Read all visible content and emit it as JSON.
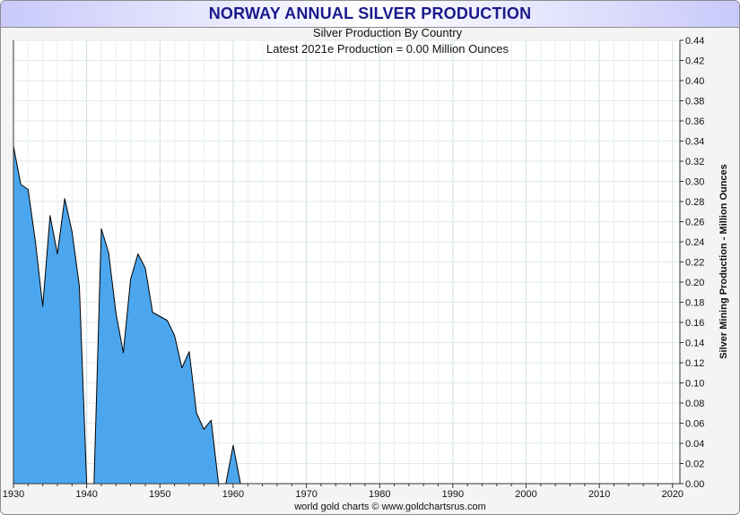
{
  "chart_data": {
    "type": "area",
    "title": "NORWAY ANNUAL SILVER PRODUCTION",
    "subtitle": "Silver Production By Country",
    "annotation": "Latest 2021e Production = 0.00 Million Ounces",
    "ylabel": "Silver Mining Production - Million Ounces",
    "credit": "world gold charts © www.goldchartsrus.com",
    "xlim": [
      1930,
      2021
    ],
    "ylim": [
      0,
      0.44
    ],
    "x_ticks": [
      1930,
      1940,
      1950,
      1960,
      1970,
      1980,
      1990,
      2000,
      2010,
      2020
    ],
    "y_ticks": [
      0.0,
      0.02,
      0.04,
      0.06,
      0.08,
      0.1,
      0.12,
      0.14,
      0.16,
      0.18,
      0.2,
      0.22,
      0.24,
      0.26,
      0.28,
      0.3,
      0.32,
      0.34,
      0.36,
      0.38,
      0.4,
      0.42,
      0.44
    ],
    "grid": true,
    "fill_color": "#4ca6ed",
    "line_color": "#000000",
    "series": [
      {
        "x": [
          1930,
          1931,
          1932,
          1933,
          1934,
          1935,
          1936,
          1937,
          1938,
          1939,
          1940,
          1941,
          1942,
          1943,
          1944,
          1945,
          1946,
          1947,
          1948,
          1949,
          1950,
          1951,
          1952,
          1953,
          1954,
          1955,
          1956,
          1957,
          1958,
          1959,
          1960,
          1961
        ],
        "values": [
          0.335,
          0.297,
          0.292,
          0.24,
          0.176,
          0.266,
          0.228,
          0.283,
          0.25,
          0.196,
          0.0,
          0.0,
          0.253,
          0.229,
          0.169,
          0.13,
          0.203,
          0.228,
          0.214,
          0.17,
          0.166,
          0.162,
          0.147,
          0.115,
          0.131,
          0.07,
          0.054,
          0.063,
          0.0,
          0.0,
          0.038,
          0.0
        ]
      }
    ]
  }
}
